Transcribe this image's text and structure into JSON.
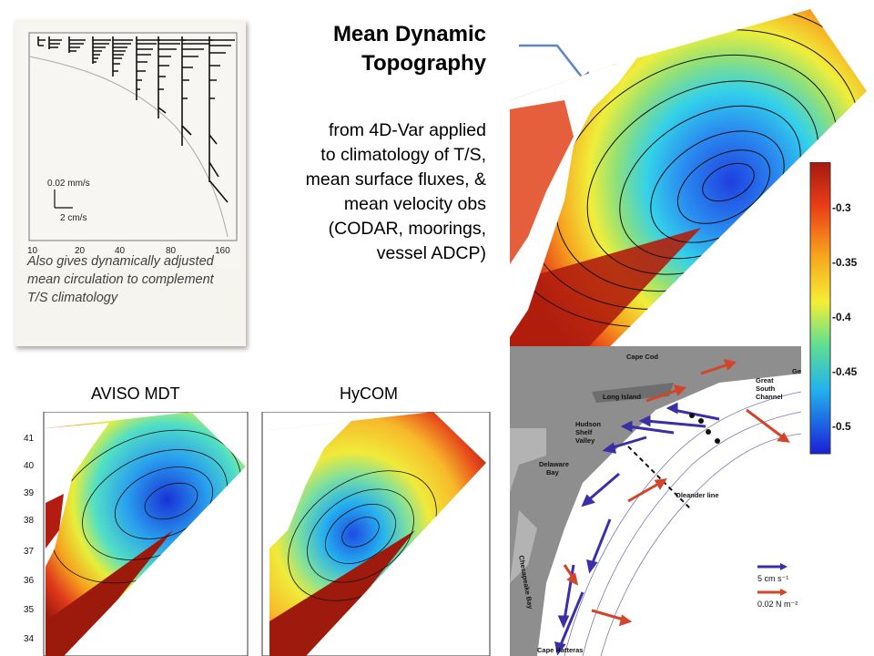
{
  "title": "Mean Dynamic\nTopography",
  "subtitle": "from 4D-Var applied\nto climatology of T/S,\nmean surface fluxes, &\nmean velocity obs\n(CODAR, moorings,\nvessel ADCP)",
  "inset": {
    "caption": "Also gives dynamically adjusted mean circulation to complement T/S climatology",
    "scale_mm": "0.02 mm/s",
    "scale_cm": "2 cm/s",
    "x_ticks": [
      "10",
      "20",
      "40",
      "80",
      "160"
    ]
  },
  "colorbar": {
    "ticks": [
      "-0.3",
      "-0.35",
      "-0.4",
      "-0.45",
      "-0.5"
    ]
  },
  "aviso": {
    "label": "AVISO MDT",
    "y_ticks": [
      "41",
      "40",
      "39",
      "38",
      "37",
      "36",
      "35",
      "34"
    ]
  },
  "hycom": {
    "label": "HyCOM"
  },
  "obs_map": {
    "labels": {
      "cape_cod": "Cape Cod",
      "long_island": "Long Island",
      "hudson": "Hudson",
      "shelf": "Shelf",
      "valley": "Valley",
      "delaware": "Delaware",
      "bay": "Bay",
      "chesapeake": "Chesapeake Bay",
      "oleander": "Oleander line",
      "great": "Great",
      "south": "South",
      "channel": "Channel",
      "ge": "Ge",
      "cape_hatteras": "Cape Hatteras"
    },
    "legend_velocity": "5 cm s⁻¹",
    "legend_stress": "0.02 N m⁻²"
  },
  "colors": {
    "velocity_arrow": "#3a2fa6",
    "stress_arrow": "#d2452a",
    "callout_arrow": "#5b86c5"
  }
}
